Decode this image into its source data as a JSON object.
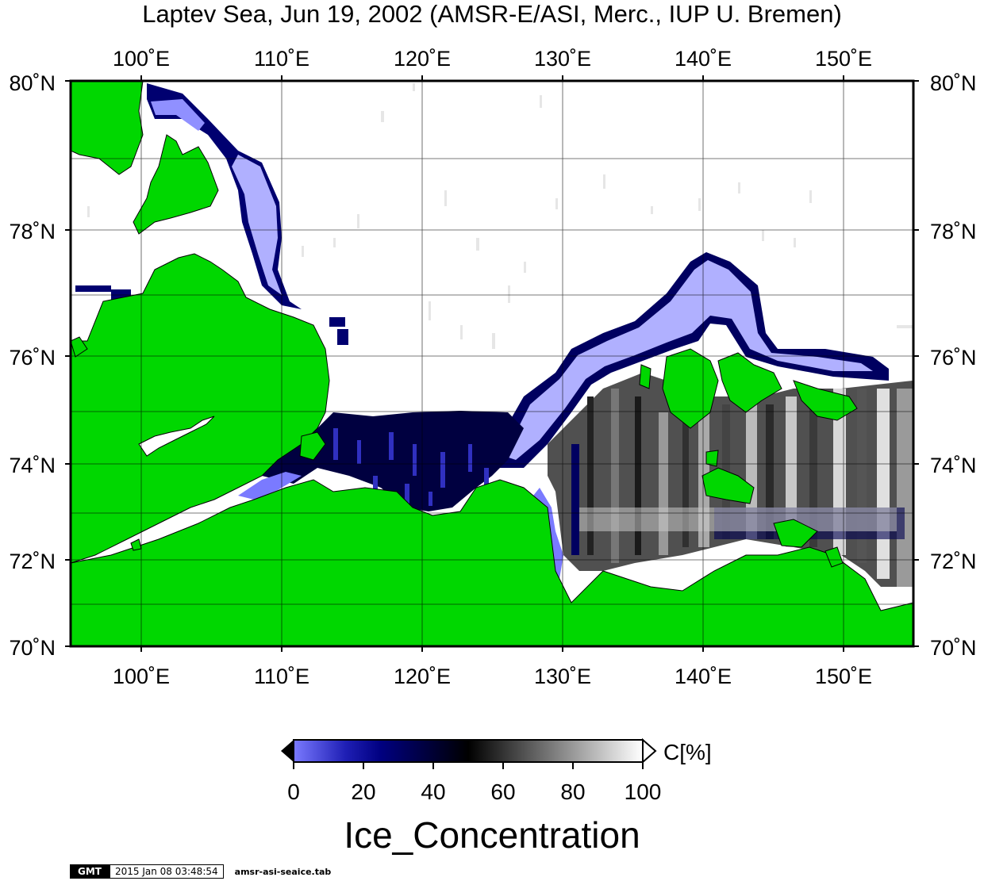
{
  "map": {
    "title": "Laptev Sea, Jun 19, 2002 (AMSR-E/ASI, Merc., IUP U. Bremen)",
    "lon_range": [
      95,
      155
    ],
    "lat_range": [
      70,
      80
    ],
    "lon_ticks": [
      100,
      110,
      120,
      130,
      140,
      150
    ],
    "lon_labels": [
      "100˚E",
      "110˚E",
      "120˚E",
      "130˚E",
      "140˚E",
      "150˚E"
    ],
    "lat_ticks": [
      70,
      72,
      74,
      76,
      78,
      80
    ],
    "lat_labels": [
      "70˚N",
      "72˚N",
      "74˚N",
      "76˚N",
      "78˚N",
      "80˚N"
    ],
    "grid_lat_every": 1,
    "grid_lon_every": 10,
    "land_color": "#00d700",
    "ocean_color": "#ffffff",
    "grid_color": "#000000"
  },
  "colorbar": {
    "label": "C[%]",
    "ticks": [
      "0",
      "20",
      "40",
      "60",
      "80",
      "100"
    ],
    "stops": [
      {
        "value": 0,
        "color": "#7a7aff"
      },
      {
        "value": 15,
        "color": "#1e1eb4"
      },
      {
        "value": 25,
        "color": "#000080"
      },
      {
        "value": 50,
        "color": "#000000"
      },
      {
        "value": 100,
        "color": "#ffffff"
      }
    ],
    "title": "Ice_Concentration"
  },
  "footer": {
    "badge": "GMT",
    "timestamp": "2015 Jan 08 03:48:54",
    "filename": "amsr-asi-seaice.tab"
  }
}
